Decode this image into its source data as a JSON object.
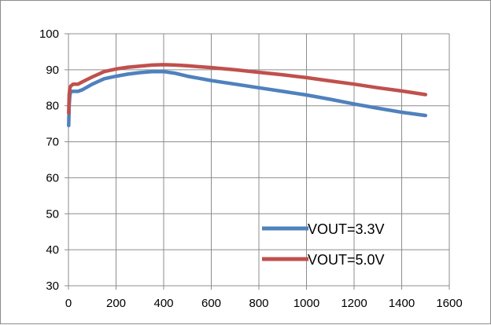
{
  "chart_data": {
    "type": "line",
    "title": "",
    "xlabel": "",
    "ylabel": "",
    "xlim": [
      0,
      1600
    ],
    "ylim": [
      30,
      100
    ],
    "x_ticks": [
      0,
      200,
      400,
      600,
      800,
      1000,
      1200,
      1400,
      1600
    ],
    "y_ticks": [
      30,
      40,
      50,
      60,
      70,
      80,
      90,
      100
    ],
    "x_tick_labels": [
      "0",
      "200",
      "400",
      "600",
      "800",
      "1000",
      "1200",
      "1400",
      "1600"
    ],
    "y_tick_labels": [
      "30",
      "40",
      "50",
      "60",
      "70",
      "80",
      "90",
      "100"
    ],
    "grid": true,
    "legend_position": "bottom-right",
    "series": [
      {
        "name": "VOUT=3.3V",
        "color": "#4f81bd",
        "x": [
          1,
          3,
          6,
          10,
          20,
          40,
          60,
          100,
          150,
          200,
          250,
          300,
          350,
          400,
          450,
          500,
          600,
          700,
          800,
          900,
          1000,
          1100,
          1200,
          1300,
          1400,
          1500
        ],
        "y": [
          74.5,
          80,
          83,
          84,
          84,
          84,
          84.5,
          86,
          87.5,
          88.2,
          88.8,
          89.2,
          89.5,
          89.5,
          89,
          88.2,
          87,
          86,
          85,
          84,
          83,
          81.8,
          80.5,
          79.3,
          78.2,
          77.3
        ]
      },
      {
        "name": "VOUT=5.0V",
        "color": "#c0504d",
        "x": [
          1,
          3,
          6,
          10,
          20,
          40,
          60,
          100,
          150,
          200,
          250,
          300,
          350,
          400,
          450,
          500,
          600,
          700,
          800,
          900,
          1000,
          1100,
          1200,
          1300,
          1400,
          1500
        ],
        "y": [
          78,
          83,
          85,
          85.5,
          86,
          86,
          86.7,
          88,
          89.5,
          90.2,
          90.7,
          91,
          91.3,
          91.4,
          91.3,
          91.1,
          90.6,
          90,
          89.3,
          88.6,
          87.8,
          86.9,
          86,
          85,
          84.1,
          83.1
        ]
      }
    ]
  }
}
